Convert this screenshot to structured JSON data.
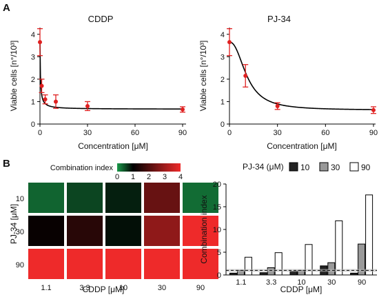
{
  "panel_a_label": "A",
  "panel_b_label": "B",
  "chart_data": [
    {
      "type": "scatter",
      "title": "CDDP",
      "xlabel": "Concentration [μM]",
      "ylabel": "Viable cells [n°/10³]",
      "xlim": [
        0,
        90
      ],
      "ylim": [
        0,
        4.3
      ],
      "xticks": [
        "0",
        "30",
        "60",
        "90"
      ],
      "yticks": [
        "0",
        "1",
        "2",
        "3",
        "4"
      ],
      "x": [
        0,
        1.1,
        3.3,
        10,
        30,
        90
      ],
      "y": [
        3.65,
        1.7,
        1.1,
        1.0,
        0.8,
        0.65
      ],
      "err": [
        0.6,
        0.3,
        0.2,
        0.3,
        0.2,
        0.12
      ],
      "fit": "decreasing hyperbolic"
    },
    {
      "type": "scatter",
      "title": "PJ-34",
      "xlabel": "Concentration [μM]",
      "ylabel": "Viable cells [n°/10³]",
      "xlim": [
        0,
        90
      ],
      "ylim": [
        0,
        4.3
      ],
      "xticks": [
        "0",
        "30",
        "60",
        "90"
      ],
      "yticks": [
        "0",
        "1",
        "2",
        "3",
        "4"
      ],
      "x": [
        0,
        10,
        30,
        90
      ],
      "y": [
        3.65,
        2.15,
        0.8,
        0.62
      ],
      "err": [
        0.6,
        0.5,
        0.15,
        0.15
      ],
      "fit": "sigmoidal"
    },
    {
      "type": "heatmap",
      "colorbar_label": "Combination index",
      "colorbar_ticks": [
        "0",
        "1",
        "2",
        "3",
        "4"
      ],
      "colorbar_range": [
        0,
        4
      ],
      "ylabel": "PJ-34 [μM]",
      "xlabel": "CDDP [μM]",
      "rows": [
        "10",
        "30",
        "90"
      ],
      "cols": [
        "1.1",
        "3.3",
        "10",
        "30",
        "90"
      ],
      "values": [
        [
          0.35,
          0.55,
          0.8,
          2.3,
          0.3
        ],
        [
          1.1,
          1.5,
          0.9,
          2.8,
          4.0
        ],
        [
          4.0,
          4.0,
          4.0,
          4.0,
          4.0
        ]
      ],
      "colors": {
        "low": "#1a9a4a",
        "mid": "#000000",
        "high": "#ee2a2a"
      }
    },
    {
      "type": "bar",
      "legend_title": "PJ-34 (μM)",
      "legend_position": "top",
      "xlabel": "CDDP [μM]",
      "ylabel": "Combination index",
      "ylim": [
        0,
        20
      ],
      "yticks": [
        "0",
        "5",
        "10",
        "15",
        "20"
      ],
      "categories": [
        "1.1",
        "3.3",
        "10",
        "30",
        "90"
      ],
      "series": [
        {
          "name": "10",
          "values": [
            0.4,
            0.5,
            0.8,
            2.0,
            0.4
          ],
          "color": "#222222"
        },
        {
          "name": "30",
          "values": [
            1.0,
            1.6,
            1.0,
            2.7,
            6.8
          ],
          "color": "#999999"
        },
        {
          "name": "90",
          "values": [
            3.9,
            4.9,
            6.7,
            11.9,
            17.6
          ],
          "color": "#ffffff"
        }
      ],
      "reference_line": 1
    }
  ]
}
